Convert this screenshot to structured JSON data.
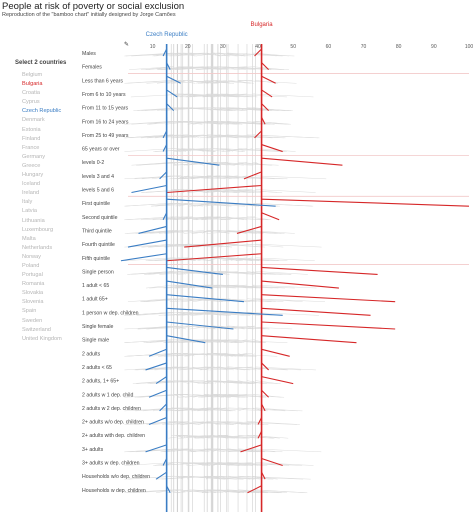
{
  "header": {
    "title": "People at risk of poverty or social exclusion",
    "subtitle": "Reproduction of the \"bamboo chart\" initially designed by Jorge Camões"
  },
  "sidebar": {
    "heading": "Select 2 countries",
    "countries": [
      {
        "name": "Belgium",
        "color": "#b5b5b5"
      },
      {
        "name": "Bulgaria",
        "color": "#d62728"
      },
      {
        "name": "Croatia",
        "color": "#b5b5b5"
      },
      {
        "name": "Cyprus",
        "color": "#b5b5b5"
      },
      {
        "name": "Czech Republic",
        "color": "#3a7dc4"
      },
      {
        "name": "Denmark",
        "color": "#b5b5b5"
      },
      {
        "name": "Estonia",
        "color": "#b5b5b5"
      },
      {
        "name": "Finland",
        "color": "#b5b5b5"
      },
      {
        "name": "France",
        "color": "#b5b5b5"
      },
      {
        "name": "Germany",
        "color": "#b5b5b5"
      },
      {
        "name": "Greece",
        "color": "#b5b5b5"
      },
      {
        "name": "Hungary",
        "color": "#b5b5b5"
      },
      {
        "name": "Iceland",
        "color": "#b5b5b5"
      },
      {
        "name": "Ireland",
        "color": "#b5b5b5"
      },
      {
        "name": "Italy",
        "color": "#b5b5b5"
      },
      {
        "name": "Latvia",
        "color": "#b5b5b5"
      },
      {
        "name": "Lithuania",
        "color": "#b5b5b5"
      },
      {
        "name": "Luxembourg",
        "color": "#b5b5b5"
      },
      {
        "name": "Malta",
        "color": "#b5b5b5"
      },
      {
        "name": "Netherlands",
        "color": "#b5b5b5"
      },
      {
        "name": "Norway",
        "color": "#b5b5b5"
      },
      {
        "name": "Poland",
        "color": "#b5b5b5"
      },
      {
        "name": "Portugal",
        "color": "#b5b5b5"
      },
      {
        "name": "Romania",
        "color": "#b5b5b5"
      },
      {
        "name": "Slovakia",
        "color": "#b5b5b5"
      },
      {
        "name": "Slovenia",
        "color": "#b5b5b5"
      },
      {
        "name": "Spain",
        "color": "#b5b5b5"
      },
      {
        "name": "Sweden",
        "color": "#b5b5b5"
      },
      {
        "name": "Switzerland",
        "color": "#b5b5b5"
      },
      {
        "name": "United Kingdom",
        "color": "#b5b5b5"
      }
    ]
  },
  "ruler_icon": "ruler-icon",
  "ruler_glyph": "✎",
  "chart_data": {
    "type": "line",
    "x_ticks": [
      10,
      20,
      30,
      40,
      50,
      60,
      70,
      80,
      90,
      100
    ],
    "xlim": [
      5,
      100
    ],
    "grid": false,
    "categories": [
      "Males",
      "Females",
      "Less than 6 years",
      "From 6 to 10 years",
      "From 11 to 15 years",
      "From 16 to 24 years",
      "From 25 to 49 years",
      "65 years or over",
      "levels 0-2",
      "levels 3 and 4",
      "levels 5 and 6",
      "First quintile",
      "Second quintile",
      "Third quintile",
      "Fourth quintile",
      "Fifth quintile",
      "Single person",
      "1 adult < 65",
      "1 adult 65+",
      "1 person w dep. children",
      "Single female",
      "Single male",
      "2 adults",
      "2 adults < 65",
      "2 adults, 1+ 65+",
      "2 adults w 1 dep. child",
      "2 adults w 2 dep. children",
      "2+ adults w/o dep. children",
      "2+ adults with dep. children",
      "3+ adults",
      "3+ adults w dep. children",
      "Households w/o dep. children",
      "Households w dep. children"
    ],
    "group_separators_after": [
      "Females",
      "65 years or over",
      "levels 5 and 6",
      "Fifth quintile"
    ],
    "series": [
      {
        "name": "Bulgaria",
        "color": "#d62728",
        "overall": 41,
        "values": [
          39,
          43,
          45,
          44,
          43,
          42,
          39,
          47,
          64,
          36,
          14,
          100,
          46,
          34,
          19,
          14,
          74,
          63,
          79,
          72,
          79,
          68,
          49,
          43,
          50,
          43,
          42,
          40,
          40,
          35,
          47,
          42,
          37
        ]
      },
      {
        "name": "Czech Republic",
        "color": "#3a7dc4",
        "overall": 14,
        "values": [
          13,
          15,
          18,
          17,
          16,
          14,
          13,
          13,
          29,
          12,
          4,
          45,
          13,
          6,
          3,
          1,
          30,
          27,
          36,
          47,
          33,
          25,
          9,
          8,
          11,
          9,
          12,
          9,
          14,
          8,
          13,
          11,
          15
        ]
      }
    ]
  }
}
